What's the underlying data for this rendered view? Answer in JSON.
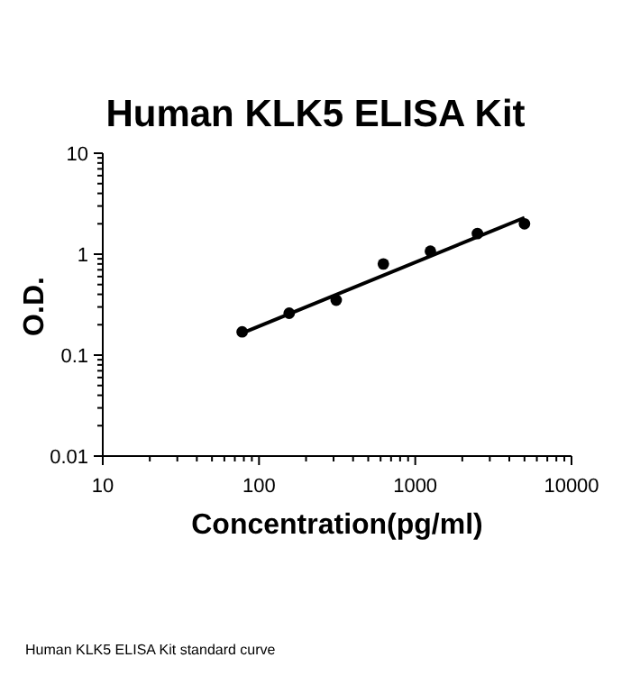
{
  "chart_data": {
    "type": "scatter",
    "title": "Human KLK5 ELISA Kit",
    "xlabel": "Concentration(pg/ml)",
    "ylabel": "O.D.",
    "log": "xy",
    "xlim": [
      10,
      10000
    ],
    "xticks": [
      10,
      {
        "value": 20,
        "label": null
      },
      {
        "value": 30,
        "label": null
      },
      {
        "value": 40,
        "label": null
      },
      {
        "value": 50,
        "label": null
      },
      {
        "value": 60,
        "label": null
      },
      {
        "value": 70,
        "label": null
      },
      {
        "value": 80,
        "label": null
      },
      {
        "value": 90,
        "label": null
      },
      100,
      {
        "value": 200,
        "label": null
      },
      {
        "value": 300,
        "label": null
      },
      {
        "value": 400,
        "label": null
      },
      {
        "value": 500,
        "label": null
      },
      {
        "value": 600,
        "label": null
      },
      {
        "value": 700,
        "label": null
      },
      {
        "value": 800,
        "label": null
      },
      {
        "value": 900,
        "label": null
      },
      1000,
      {
        "value": 2000,
        "label": null
      },
      {
        "value": 3000,
        "label": null
      },
      {
        "value": 4000,
        "label": null
      },
      {
        "value": 5000,
        "label": null
      },
      {
        "value": 6000,
        "label": null
      },
      {
        "value": 7000,
        "label": null
      },
      {
        "value": 8000,
        "label": null
      },
      {
        "value": 9000,
        "label": null
      },
      10000
    ],
    "ylim": [
      0.01,
      10
    ],
    "yticks": [
      0.01,
      {
        "value": 0.02,
        "label": null
      },
      {
        "value": 0.03,
        "label": null
      },
      {
        "value": 0.04,
        "label": null
      },
      {
        "value": 0.05,
        "label": null
      },
      {
        "value": 0.06,
        "label": null
      },
      {
        "value": 0.07,
        "label": null
      },
      {
        "value": 0.08,
        "label": null
      },
      {
        "value": 0.09,
        "label": null
      },
      0.1,
      {
        "value": 0.2,
        "label": null
      },
      {
        "value": 0.3,
        "label": null
      },
      {
        "value": 0.4,
        "label": null
      },
      {
        "value": 0.5,
        "label": null
      },
      {
        "value": 0.6,
        "label": null
      },
      {
        "value": 0.7,
        "label": null
      },
      {
        "value": 0.8,
        "label": null
      },
      {
        "value": 0.9,
        "label": null
      },
      1,
      {
        "value": 2,
        "label": null
      },
      {
        "value": 3,
        "label": null
      },
      {
        "value": 4,
        "label": null
      },
      {
        "value": 5,
        "label": null
      },
      {
        "value": 6,
        "label": null
      },
      {
        "value": 7,
        "label": null
      },
      {
        "value": 8,
        "label": null
      },
      {
        "value": 9,
        "label": null
      },
      10
    ],
    "series": [
      {
        "type": "scatter",
        "color": "#000000",
        "marker": "circle",
        "x": [
          78,
          156,
          312,
          625,
          1250,
          2500,
          5000
        ],
        "values": [
          0.17,
          0.26,
          0.35,
          0.8,
          1.07,
          1.6,
          2.0
        ]
      },
      {
        "type": "line",
        "color": "#000000",
        "marker": "none",
        "line_style": "solid",
        "x": [
          78,
          5000
        ],
        "values": [
          0.165,
          2.3
        ]
      }
    ],
    "annotations": [
      "Human KLK5 ELISA Kit standard curve"
    ]
  }
}
